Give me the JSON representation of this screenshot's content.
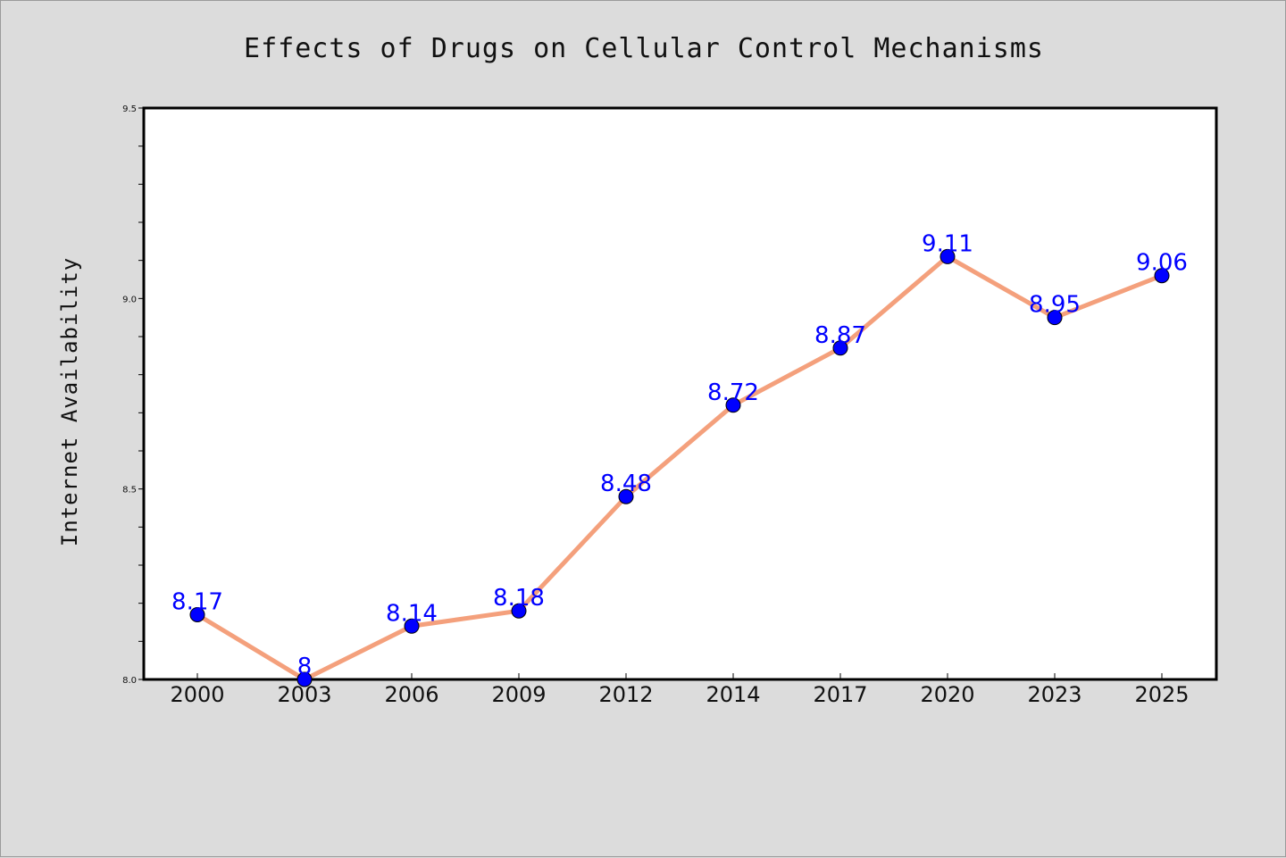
{
  "chart_data": {
    "type": "line",
    "title": "Effects of Drugs on Cellular Control Mechanisms",
    "xlabel": "",
    "ylabel": "Internet Availability",
    "categories": [
      "2000",
      "2003",
      "2006",
      "2009",
      "2012",
      "2014",
      "2017",
      "2020",
      "2023",
      "2025"
    ],
    "series": [
      {
        "values": [
          8.17,
          8.0,
          8.14,
          8.18,
          8.48,
          8.72,
          8.87,
          9.11,
          8.95,
          9.06
        ],
        "labels": [
          "8.17",
          "8",
          "8.14",
          "8.18",
          "8.48",
          "8.72",
          "8.87",
          "9.11",
          "8.95",
          "9.06"
        ],
        "line_color": "#f4a07c",
        "marker_color": "#0000ff"
      }
    ],
    "ylim": [
      8.0,
      9.5
    ],
    "yticks": [
      "8.0",
      "8.5",
      "9.0",
      "9.5"
    ],
    "grid": false,
    "legend": "none",
    "background": "#dcdcdc",
    "plot_background": "#ffffff"
  }
}
